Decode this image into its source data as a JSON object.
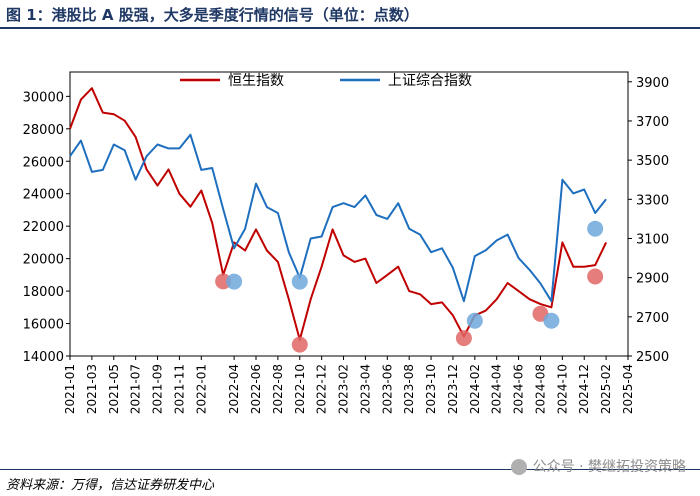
{
  "figure": {
    "title": "图 1：港股比 A 股强，大多是季度行情的信号（单位：点数）",
    "source": "资料来源：万得，信达证券研发中心",
    "watermark": "公众号 · 樊继拓投资策略"
  },
  "chart_data": {
    "type": "line",
    "series": [
      {
        "name": "恒生指数",
        "axis": "left",
        "color": "#c00000",
        "x": [
          "2021-01",
          "2021-02",
          "2021-03",
          "2021-04",
          "2021-05",
          "2021-06",
          "2021-07",
          "2021-08",
          "2021-09",
          "2021-10",
          "2021-11",
          "2021-12",
          "2022-01",
          "2022-02",
          "2022-03",
          "2022-04",
          "2022-05",
          "2022-06",
          "2022-07",
          "2022-08",
          "2022-09",
          "2022-10",
          "2022-11",
          "2022-12",
          "2023-01",
          "2023-02",
          "2023-03",
          "2023-04",
          "2023-05",
          "2023-06",
          "2023-07",
          "2023-08",
          "2023-09",
          "2023-10",
          "2023-11",
          "2023-12",
          "2024-01",
          "2024-02",
          "2024-03",
          "2024-04",
          "2024-05",
          "2024-06",
          "2024-07",
          "2024-08",
          "2024-09",
          "2024-10",
          "2024-11",
          "2024-12",
          "2025-01",
          "2025-02"
        ],
        "values": [
          28000,
          29800,
          30500,
          29000,
          28900,
          28500,
          27500,
          25500,
          24500,
          25500,
          24000,
          23200,
          24200,
          22200,
          19000,
          21000,
          20500,
          21800,
          20500,
          19800,
          17500,
          15000,
          17500,
          19500,
          21800,
          20200,
          19800,
          20000,
          18500,
          19000,
          19500,
          18000,
          17800,
          17200,
          17300,
          16500,
          15200,
          16500,
          16800,
          17500,
          18500,
          18000,
          17500,
          17200,
          17000,
          21000,
          19500,
          19500,
          19600,
          21000
        ]
      },
      {
        "name": "上证综合指数",
        "axis": "right",
        "color": "#1f6fbf",
        "x": [
          "2021-01",
          "2021-02",
          "2021-03",
          "2021-04",
          "2021-05",
          "2021-06",
          "2021-07",
          "2021-08",
          "2021-09",
          "2021-10",
          "2021-11",
          "2021-12",
          "2022-01",
          "2022-02",
          "2022-03",
          "2022-04",
          "2022-05",
          "2022-06",
          "2022-07",
          "2022-08",
          "2022-09",
          "2022-10",
          "2022-11",
          "2022-12",
          "2023-01",
          "2023-02",
          "2023-03",
          "2023-04",
          "2023-05",
          "2023-06",
          "2023-07",
          "2023-08",
          "2023-09",
          "2023-10",
          "2023-11",
          "2023-12",
          "2024-01",
          "2024-02",
          "2024-03",
          "2024-04",
          "2024-05",
          "2024-06",
          "2024-07",
          "2024-08",
          "2024-09",
          "2024-10",
          "2024-11",
          "2024-12",
          "2025-01",
          "2025-02"
        ],
        "values": [
          3520,
          3600,
          3440,
          3450,
          3580,
          3550,
          3400,
          3520,
          3580,
          3560,
          3560,
          3630,
          3450,
          3460,
          3250,
          3050,
          3150,
          3380,
          3260,
          3230,
          3030,
          2900,
          3100,
          3110,
          3260,
          3280,
          3260,
          3320,
          3220,
          3200,
          3280,
          3150,
          3120,
          3030,
          3050,
          2950,
          2780,
          3010,
          3040,
          3090,
          3120,
          3000,
          2940,
          2870,
          2780,
          3400,
          3330,
          3350,
          3230,
          3300
        ]
      }
    ],
    "y_left": {
      "ticks": [
        14000,
        16000,
        18000,
        20000,
        22000,
        24000,
        26000,
        28000,
        30000
      ],
      "ylim": [
        14000,
        31500
      ]
    },
    "y_right": {
      "ticks": [
        2500,
        2700,
        2900,
        3100,
        3300,
        3500,
        3700,
        3900
      ],
      "ylim": [
        2500,
        3950
      ]
    },
    "x_ticks": [
      "2021-01",
      "2021-03",
      "2021-05",
      "2021-07",
      "2021-09",
      "2021-11",
      "2022-01",
      "2022-04",
      "2022-06",
      "2022-08",
      "2022-10",
      "2022-12",
      "2023-02",
      "2023-04",
      "2023-06",
      "2023-08",
      "2023-10",
      "2023-12",
      "2024-02",
      "2024-04",
      "2024-06",
      "2024-08",
      "2024-10",
      "2024-12",
      "2025-02",
      "2025-04"
    ],
    "x_range": [
      "2021-01",
      "2025-04"
    ],
    "legend": {
      "position": "top-center"
    },
    "grid": false,
    "markers": [
      {
        "series": "恒生指数",
        "date": "2022-03",
        "value": 18600
      },
      {
        "series": "恒生指数",
        "date": "2022-10",
        "value": 14700
      },
      {
        "series": "恒生指数",
        "date": "2024-01",
        "value": 15100
      },
      {
        "series": "恒生指数",
        "date": "2024-08",
        "value": 16600
      },
      {
        "series": "恒生指数",
        "date": "2025-01",
        "value": 18900
      },
      {
        "series": "上证综合指数",
        "date": "2022-04",
        "value": 2880
      },
      {
        "series": "上证综合指数",
        "date": "2022-10",
        "value": 2880
      },
      {
        "series": "上证综合指数",
        "date": "2024-02",
        "value": 2680
      },
      {
        "series": "上证综合指数",
        "date": "2024-09",
        "value": 2680
      },
      {
        "series": "上证综合指数",
        "date": "2025-01",
        "value": 3150
      }
    ],
    "marker_colors": {
      "恒生指数": "#e06666",
      "上证综合指数": "#6fa8dc"
    }
  }
}
